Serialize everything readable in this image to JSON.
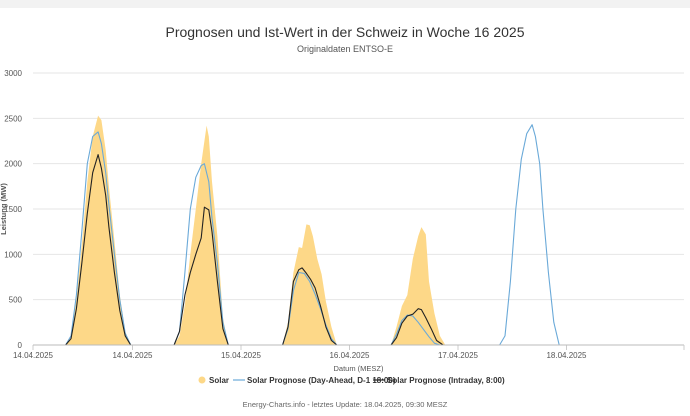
{
  "chart_data": {
    "type": "area",
    "title": "Prognosen und Ist-Wert in der Schweiz in Woche 16 2025",
    "subtitle": "Originaldaten ENTSO-E",
    "xlabel": "Datum (MESZ)",
    "ylabel": "Leistung (MW)",
    "credits": "Energy-Charts.info - letztes Update: 18.04.2025, 09:30 MESZ",
    "ylim": [
      0,
      3000
    ],
    "yticks": [
      0,
      500,
      1000,
      1500,
      2000,
      2500,
      3000
    ],
    "grid": true,
    "legend_position": "bottom",
    "xlim_days": [
      14,
      20.0
    ],
    "xticks": [
      {
        "label": "14.04.2025",
        "day": 14.0
      },
      {
        "label": "14.04.2025",
        "day": 14.917
      },
      {
        "label": "15.04.2025",
        "day": 15.917
      },
      {
        "label": "16.04.2025",
        "day": 16.917
      },
      {
        "label": "17.04.2025",
        "day": 17.917
      },
      {
        "label": "18.04.2025",
        "day": 18.917
      }
    ],
    "series": [
      {
        "name": "Solar",
        "kind": "area",
        "color": "#fdd888",
        "points": [
          [
            14.0,
            0
          ],
          [
            14.3,
            0
          ],
          [
            14.35,
            80
          ],
          [
            14.4,
            500
          ],
          [
            14.45,
            1100
          ],
          [
            14.5,
            1800
          ],
          [
            14.55,
            2300
          ],
          [
            14.6,
            2530
          ],
          [
            14.63,
            2480
          ],
          [
            14.67,
            2150
          ],
          [
            14.7,
            1750
          ],
          [
            14.75,
            1150
          ],
          [
            14.8,
            550
          ],
          [
            14.85,
            150
          ],
          [
            14.9,
            0
          ],
          [
            15.3,
            0
          ],
          [
            15.35,
            100
          ],
          [
            15.4,
            450
          ],
          [
            15.45,
            1000
          ],
          [
            15.5,
            1500
          ],
          [
            15.55,
            2000
          ],
          [
            15.6,
            2420
          ],
          [
            15.62,
            2300
          ],
          [
            15.65,
            1800
          ],
          [
            15.7,
            1200
          ],
          [
            15.75,
            300
          ],
          [
            15.8,
            0
          ],
          [
            16.3,
            0
          ],
          [
            16.35,
            250
          ],
          [
            16.4,
            800
          ],
          [
            16.45,
            1080
          ],
          [
            16.48,
            1070
          ],
          [
            16.52,
            1330
          ],
          [
            16.55,
            1320
          ],
          [
            16.58,
            1200
          ],
          [
            16.62,
            950
          ],
          [
            16.66,
            780
          ],
          [
            16.7,
            480
          ],
          [
            16.75,
            200
          ],
          [
            16.8,
            0
          ],
          [
            17.3,
            0
          ],
          [
            17.35,
            200
          ],
          [
            17.4,
            430
          ],
          [
            17.45,
            550
          ],
          [
            17.5,
            950
          ],
          [
            17.55,
            1200
          ],
          [
            17.58,
            1300
          ],
          [
            17.62,
            1220
          ],
          [
            17.65,
            700
          ],
          [
            17.7,
            350
          ],
          [
            17.75,
            100
          ],
          [
            17.8,
            0
          ],
          [
            18.0,
            0
          ]
        ]
      },
      {
        "name": "Solar Prognose (Day-Ahead, D-1 18:00)",
        "kind": "line",
        "color": "#6aa9d8",
        "points": [
          [
            14.0,
            0
          ],
          [
            14.3,
            0
          ],
          [
            14.35,
            100
          ],
          [
            14.4,
            550
          ],
          [
            14.45,
            1250
          ],
          [
            14.5,
            2000
          ],
          [
            14.55,
            2300
          ],
          [
            14.6,
            2350
          ],
          [
            14.63,
            2220
          ],
          [
            14.67,
            1900
          ],
          [
            14.7,
            1550
          ],
          [
            14.75,
            1000
          ],
          [
            14.8,
            500
          ],
          [
            14.85,
            130
          ],
          [
            14.9,
            0
          ],
          [
            15.3,
            0
          ],
          [
            15.35,
            150
          ],
          [
            15.4,
            800
          ],
          [
            15.45,
            1500
          ],
          [
            15.5,
            1850
          ],
          [
            15.55,
            1980
          ],
          [
            15.58,
            2000
          ],
          [
            15.62,
            1800
          ],
          [
            15.65,
            1400
          ],
          [
            15.7,
            900
          ],
          [
            15.75,
            250
          ],
          [
            15.8,
            0
          ],
          [
            16.3,
            0
          ],
          [
            16.35,
            180
          ],
          [
            16.4,
            600
          ],
          [
            16.45,
            800
          ],
          [
            16.5,
            790
          ],
          [
            16.55,
            700
          ],
          [
            16.6,
            560
          ],
          [
            16.65,
            400
          ],
          [
            16.7,
            220
          ],
          [
            16.75,
            70
          ],
          [
            16.8,
            0
          ],
          [
            17.3,
            0
          ],
          [
            17.35,
            120
          ],
          [
            17.4,
            270
          ],
          [
            17.45,
            330
          ],
          [
            17.5,
            320
          ],
          [
            17.55,
            250
          ],
          [
            17.6,
            170
          ],
          [
            17.65,
            90
          ],
          [
            17.7,
            20
          ],
          [
            17.75,
            0
          ],
          [
            18.3,
            0
          ],
          [
            18.35,
            100
          ],
          [
            18.4,
            700
          ],
          [
            18.45,
            1500
          ],
          [
            18.5,
            2050
          ],
          [
            18.55,
            2330
          ],
          [
            18.6,
            2430
          ],
          [
            18.63,
            2300
          ],
          [
            18.67,
            2000
          ],
          [
            18.7,
            1500
          ],
          [
            18.75,
            800
          ],
          [
            18.8,
            250
          ],
          [
            18.85,
            0
          ],
          [
            20.0,
            0
          ]
        ]
      },
      {
        "name": "Solar Prognose (Intraday, 8:00)",
        "kind": "line",
        "color": "#222222",
        "points": [
          [
            14.0,
            0
          ],
          [
            14.3,
            0
          ],
          [
            14.35,
            70
          ],
          [
            14.4,
            400
          ],
          [
            14.45,
            900
          ],
          [
            14.5,
            1450
          ],
          [
            14.55,
            1900
          ],
          [
            14.6,
            2100
          ],
          [
            14.63,
            1950
          ],
          [
            14.67,
            1650
          ],
          [
            14.7,
            1300
          ],
          [
            14.75,
            800
          ],
          [
            14.8,
            380
          ],
          [
            14.85,
            100
          ],
          [
            14.9,
            0
          ],
          [
            15.3,
            0
          ],
          [
            15.35,
            150
          ],
          [
            15.4,
            550
          ],
          [
            15.45,
            800
          ],
          [
            15.5,
            1000
          ],
          [
            15.55,
            1180
          ],
          [
            15.58,
            1520
          ],
          [
            15.62,
            1490
          ],
          [
            15.65,
            1250
          ],
          [
            15.7,
            700
          ],
          [
            15.75,
            180
          ],
          [
            15.8,
            0
          ],
          [
            16.3,
            0
          ],
          [
            16.35,
            200
          ],
          [
            16.4,
            700
          ],
          [
            16.45,
            830
          ],
          [
            16.48,
            850
          ],
          [
            16.52,
            790
          ],
          [
            16.56,
            720
          ],
          [
            16.6,
            630
          ],
          [
            16.65,
            430
          ],
          [
            16.7,
            200
          ],
          [
            16.75,
            50
          ],
          [
            16.8,
            0
          ],
          [
            17.3,
            0
          ],
          [
            17.35,
            80
          ],
          [
            17.4,
            240
          ],
          [
            17.45,
            320
          ],
          [
            17.5,
            340
          ],
          [
            17.55,
            400
          ],
          [
            17.58,
            390
          ],
          [
            17.62,
            300
          ],
          [
            17.67,
            180
          ],
          [
            17.72,
            50
          ],
          [
            17.78,
            0
          ],
          [
            18.0,
            0
          ]
        ]
      }
    ]
  }
}
